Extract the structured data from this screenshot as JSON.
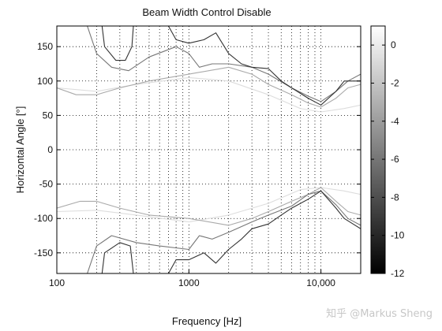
{
  "chart_data": {
    "type": "heatmap",
    "title": "Beam Width Control Disable",
    "xlabel": "Frequency [Hz]",
    "ylabel": "Horizontal Angle [°]",
    "x_scale": "log",
    "xlim": [
      100,
      20000
    ],
    "ylim": [
      -180,
      180
    ],
    "grid": "dotted",
    "x_ticks": [
      {
        "value": 100,
        "label": "100"
      },
      {
        "value": 1000,
        "label": "1000"
      },
      {
        "value": 10000,
        "label": "10,000"
      }
    ],
    "y_ticks": [
      {
        "value": 150,
        "label": "150"
      },
      {
        "value": 100,
        "label": "100"
      },
      {
        "value": 50,
        "label": "50"
      },
      {
        "value": 0,
        "label": "0"
      },
      {
        "value": -50,
        "label": "-50"
      },
      {
        "value": -100,
        "label": "-100"
      },
      {
        "value": -150,
        "label": "-150"
      }
    ],
    "colorbar": {
      "range": [
        -12,
        1
      ],
      "ticks": [
        {
          "value": 0,
          "label": "0"
        },
        {
          "value": -2,
          "label": "-2"
        },
        {
          "value": -4,
          "label": "-4"
        },
        {
          "value": -6,
          "label": "-6"
        },
        {
          "value": -8,
          "label": "-8"
        },
        {
          "value": -10,
          "label": "-10"
        },
        {
          "value": -12,
          "label": "-12"
        }
      ]
    },
    "contours": [
      {
        "level": -1,
        "color": "#dddddd",
        "upper": [
          [
            100,
            90
          ],
          [
            200,
            85
          ],
          [
            400,
            95
          ],
          [
            1000,
            105
          ],
          [
            2000,
            100
          ],
          [
            4000,
            80
          ],
          [
            7000,
            60
          ],
          [
            10000,
            55
          ],
          [
            15000,
            60
          ],
          [
            20000,
            65
          ]
        ],
        "lower": [
          [
            100,
            -90
          ],
          [
            200,
            -88
          ],
          [
            400,
            -95
          ],
          [
            1000,
            -105
          ],
          [
            2000,
            -95
          ],
          [
            4000,
            -78
          ],
          [
            7000,
            -58
          ],
          [
            10000,
            -55
          ],
          [
            15000,
            -60
          ],
          [
            20000,
            -65
          ]
        ]
      },
      {
        "level": -3,
        "color": "#aaaaaa",
        "upper": [
          [
            100,
            90
          ],
          [
            140,
            80
          ],
          [
            200,
            80
          ],
          [
            300,
            90
          ],
          [
            500,
            100
          ],
          [
            1000,
            110
          ],
          [
            2000,
            120
          ],
          [
            3000,
            110
          ],
          [
            4000,
            95
          ],
          [
            6000,
            80
          ],
          [
            8000,
            68
          ],
          [
            10000,
            62
          ],
          [
            13000,
            75
          ],
          [
            16000,
            90
          ],
          [
            20000,
            95
          ]
        ],
        "lower": [
          [
            100,
            -85
          ],
          [
            150,
            -75
          ],
          [
            200,
            -75
          ],
          [
            300,
            -85
          ],
          [
            500,
            -95
          ],
          [
            1000,
            -100
          ],
          [
            2000,
            -110
          ],
          [
            3000,
            -100
          ],
          [
            4000,
            -90
          ],
          [
            6000,
            -75
          ],
          [
            8000,
            -65
          ],
          [
            10000,
            -55
          ],
          [
            13000,
            -75
          ],
          [
            16000,
            -90
          ],
          [
            20000,
            -95
          ]
        ]
      },
      {
        "level": -6,
        "color": "#777777",
        "upper": [
          [
            170,
            180
          ],
          [
            200,
            140
          ],
          [
            260,
            120
          ],
          [
            350,
            115
          ],
          [
            500,
            135
          ],
          [
            800,
            150
          ],
          [
            1000,
            140
          ],
          [
            1200,
            120
          ],
          [
            1500,
            125
          ],
          [
            2000,
            125
          ],
          [
            3000,
            120
          ],
          [
            4000,
            110
          ],
          [
            6000,
            90
          ],
          [
            8000,
            78
          ],
          [
            10000,
            70
          ],
          [
            13000,
            85
          ],
          [
            16000,
            100
          ],
          [
            20000,
            110
          ]
        ],
        "lower": [
          [
            170,
            -180
          ],
          [
            200,
            -140
          ],
          [
            260,
            -125
          ],
          [
            400,
            -135
          ],
          [
            600,
            -140
          ],
          [
            1000,
            -145
          ],
          [
            1200,
            -125
          ],
          [
            1500,
            -130
          ],
          [
            2000,
            -120
          ],
          [
            3000,
            -105
          ],
          [
            4000,
            -95
          ],
          [
            6000,
            -82
          ],
          [
            8000,
            -65
          ],
          [
            10000,
            -60
          ],
          [
            13000,
            -80
          ],
          [
            16000,
            -100
          ],
          [
            20000,
            -110
          ]
        ]
      },
      {
        "level": -9,
        "color": "#333333",
        "upper": [
          [
            220,
            180
          ],
          [
            230,
            150
          ],
          [
            280,
            130
          ],
          [
            330,
            130
          ],
          [
            370,
            150
          ],
          [
            380,
            180
          ],
          [
            700,
            180
          ],
          [
            800,
            160
          ],
          [
            1000,
            155
          ],
          [
            1300,
            160
          ],
          [
            1600,
            170
          ],
          [
            2000,
            140
          ],
          [
            2500,
            125
          ],
          [
            3000,
            120
          ],
          [
            4000,
            118
          ],
          [
            5000,
            100
          ],
          [
            6000,
            90
          ],
          [
            8000,
            75
          ],
          [
            10000,
            65
          ],
          [
            13000,
            85
          ],
          [
            15000,
            100
          ],
          [
            20000,
            100
          ]
        ],
        "lower": [
          [
            220,
            -180
          ],
          [
            230,
            -150
          ],
          [
            300,
            -135
          ],
          [
            360,
            -140
          ],
          [
            380,
            -180
          ],
          [
            700,
            -180
          ],
          [
            800,
            -160
          ],
          [
            1000,
            -160
          ],
          [
            1300,
            -150
          ],
          [
            1600,
            -165
          ],
          [
            2000,
            -145
          ],
          [
            2500,
            -130
          ],
          [
            3000,
            -115
          ],
          [
            4000,
            -108
          ],
          [
            5000,
            -95
          ],
          [
            6000,
            -85
          ],
          [
            8000,
            -72
          ],
          [
            10000,
            -60
          ],
          [
            13000,
            -85
          ],
          [
            15000,
            -100
          ],
          [
            20000,
            -115
          ]
        ]
      }
    ]
  },
  "watermark": "知乎 @Markus Sheng"
}
